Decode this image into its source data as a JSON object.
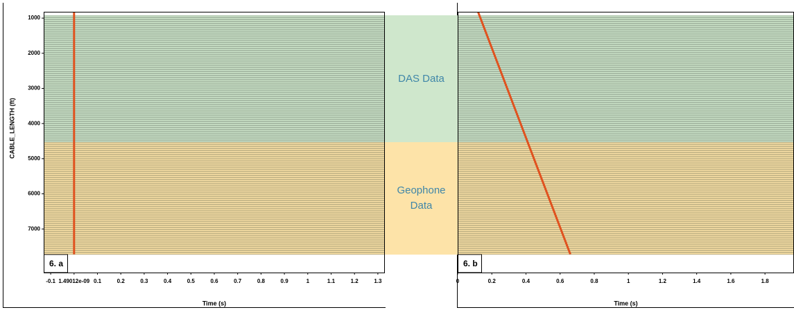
{
  "chart_data": [
    {
      "type": "line",
      "panel_label": "6. a",
      "xlabel": "Time (s)",
      "ylabel": "CABLE_LENGTH (ft)",
      "xlim": [
        -0.13,
        1.33
      ],
      "ylim": [
        8240,
        820
      ],
      "xticks": [
        -0.1,
        {
          "value": 1.49012e-09,
          "label": "1.49012e-09"
        },
        0.1,
        0.2,
        0.3,
        0.4,
        0.5,
        0.6,
        0.7,
        0.8,
        0.9,
        1,
        1.1,
        1.2,
        1.3
      ],
      "yticks": [
        1000,
        2000,
        3000,
        4000,
        5000,
        6000,
        7000
      ],
      "x": [
        0,
        0
      ],
      "values": [
        830,
        7720
      ],
      "color": "#e0521f"
    },
    {
      "type": "line",
      "panel_label": "6. b",
      "xlabel": "Time (s)",
      "xlim": [
        0,
        1.97
      ],
      "ylim": [
        8240,
        820
      ],
      "xticks": [
        0,
        0.2,
        0.4,
        0.6,
        0.8,
        1,
        1.2,
        1.4,
        1.6,
        1.8
      ],
      "x": [
        0.12,
        0.66
      ],
      "values": [
        830,
        7720
      ],
      "color": "#e0521f"
    }
  ],
  "regions": [
    {
      "label": "DAS Data",
      "range": [
        920,
        4530
      ],
      "color": "#cfe7cc"
    },
    {
      "label": "Geophone Data",
      "range": [
        4530,
        7730
      ],
      "color": "#fde3a8"
    }
  ]
}
